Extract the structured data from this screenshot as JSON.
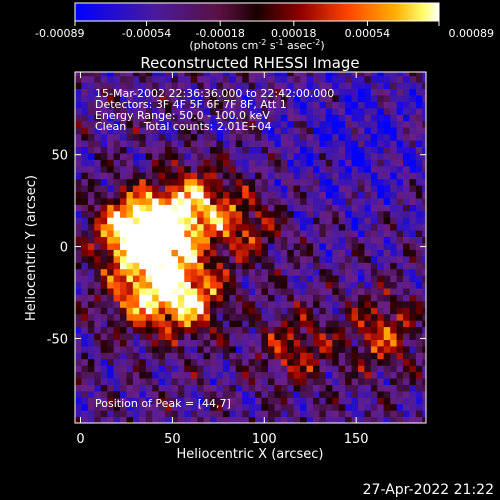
{
  "colorbar": {
    "tick_labels": [
      "-0.00089",
      "-0.00054",
      "-0.00018",
      "0.00018",
      "0.00054",
      "0.00089"
    ],
    "tick_values": [
      -0.00089,
      -0.00054,
      -0.00018,
      0.00018,
      0.00054,
      0.00089
    ],
    "range": [
      -0.00089,
      0.00089
    ],
    "unit_prefix": "(photons cm",
    "unit_sup1": "-2",
    "unit_mid1": " s",
    "unit_sup2": "-1",
    "unit_mid2": " asec",
    "unit_sup3": "-2",
    "unit_suffix": ")"
  },
  "chart_data": {
    "type": "heatmap",
    "title": "Reconstructed RHESSI Image",
    "xlabel": "Heliocentric X (arcsec)",
    "ylabel": "Heliocentric Y (arcsec)",
    "xlim": [
      -3,
      188
    ],
    "ylim": [
      -96,
      95
    ],
    "x_ticks": [
      0,
      50,
      100,
      150
    ],
    "y_ticks": [
      -50,
      0,
      50
    ],
    "x_tick_labels": [
      "0",
      "50",
      "100",
      "150"
    ],
    "y_tick_labels": [
      "-50",
      "0",
      "50"
    ],
    "peak": [
      44,
      7
    ],
    "sources": [
      {
        "x": 44,
        "y": 7,
        "intensity": 0.00089
      },
      {
        "x": 27,
        "y": 8,
        "intensity": 0.0007
      },
      {
        "x": 63,
        "y": 25,
        "intensity": 0.00045
      },
      {
        "x": 58,
        "y": -27,
        "intensity": 0.0007
      },
      {
        "x": 34,
        "y": -26,
        "intensity": 0.00045
      },
      {
        "x": 90,
        "y": 10,
        "intensity": 0.00022
      },
      {
        "x": 165,
        "y": -47,
        "intensity": 0.0003
      },
      {
        "x": 118,
        "y": -55,
        "intensity": 0.00022
      }
    ],
    "colormap": [
      "#0000ff",
      "#4a1a9e",
      "#6a1f86",
      "#1a0000",
      "#900000",
      "#ff4400",
      "#ffb000",
      "#ffff70",
      "#ffffff"
    ],
    "annotations": [
      "15-Mar-2002 22:36:36.000 to 22:42:00.000",
      "Detectors: 3F 4F 5F 6F 7F 8F, Att 1",
      "Energy Range: 50.0 - 100.0 keV",
      "Clean     Total counts: 2.01E+04",
      "Position of Peak = [44,7]"
    ]
  },
  "timestamp": "27-Apr-2022 21:22"
}
